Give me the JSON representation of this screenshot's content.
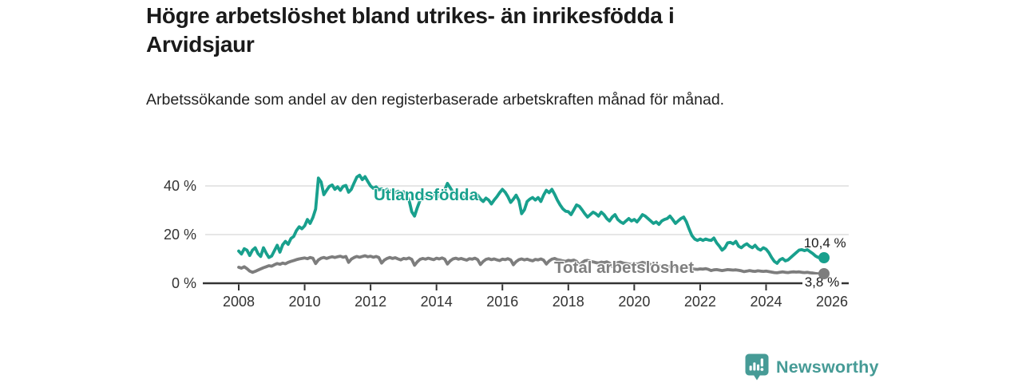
{
  "title": "Högre arbetslöshet bland utrikes- än inrikesfödda i Arvidsjaur",
  "subtitle": "Arbetssökande som andel av den registerbaserade arbetskraften månad för månad.",
  "brand": {
    "name": "Newsworthy"
  },
  "colors": {
    "accent_teal": "#18a08d",
    "line_gray": "#7d7d7d",
    "label_gray": "#7f7f7f",
    "brand_teal": "#469b96",
    "axis": "#333333",
    "grid": "#dddddd",
    "text_dark": "#1a1a1a"
  },
  "chart_data": {
    "type": "line",
    "title": "Högre arbetslöshet bland utrikes- än inrikesfödda i Arvidsjaur",
    "subtitle": "Arbetssökande som andel av den registerbaserade arbetskraften månad för månad.",
    "unit": "%",
    "frequency": "monthly",
    "x_start": "2008-01",
    "x_end": "2025-10",
    "ylim": [
      0,
      46
    ],
    "grid": "horizontal",
    "y_ticks": [
      {
        "value": 0,
        "label": "0 %"
      },
      {
        "value": 20,
        "label": "20 %"
      },
      {
        "value": 40,
        "label": "40 %"
      }
    ],
    "x_ticks": [
      {
        "value": 2008,
        "label": "2008"
      },
      {
        "value": 2010,
        "label": "2010"
      },
      {
        "value": 2012,
        "label": "2012"
      },
      {
        "value": 2014,
        "label": "2014"
      },
      {
        "value": 2016,
        "label": "2016"
      },
      {
        "value": 2018,
        "label": "2018"
      },
      {
        "value": 2020,
        "label": "2020"
      },
      {
        "value": 2022,
        "label": "2022"
      },
      {
        "value": 2024,
        "label": "2024"
      },
      {
        "value": 2026,
        "label": "2026"
      }
    ],
    "series": [
      {
        "name": "Utlandsfödda",
        "color": "#18a08d",
        "end_label": "10,4 %",
        "end_value": 10.4,
        "values": [
          13.2,
          12.0,
          14.2,
          13.6,
          11.4,
          13.6,
          14.6,
          12.2,
          11.0,
          14.6,
          12.4,
          10.6,
          11.2,
          13.4,
          15.6,
          12.8,
          15.8,
          17.2,
          16.0,
          18.4,
          19.2,
          21.6,
          23.2,
          22.4,
          23.6,
          26.2,
          24.6,
          27.0,
          30.5,
          43.2,
          41.6,
          36.4,
          38.2,
          39.8,
          40.4,
          38.6,
          39.6,
          38.2,
          39.8,
          40.2,
          37.4,
          38.6,
          41.2,
          43.6,
          44.4,
          42.6,
          43.8,
          41.8,
          40.0,
          39.0,
          39.6,
          38.4,
          38.8,
          38.0,
          38.6,
          37.6,
          38.2,
          37.2,
          37.8,
          37.0,
          37.6,
          36.4,
          34.2,
          29.4,
          27.6,
          31.0,
          34.0,
          35.6,
          35.0,
          36.2,
          35.4,
          36.0,
          36.6,
          35.6,
          36.8,
          38.4,
          41.0,
          39.2,
          37.4,
          36.4,
          35.6,
          36.2,
          35.2,
          34.6,
          35.4,
          36.4,
          37.2,
          36.2,
          34.6,
          33.6,
          35.0,
          34.2,
          32.6,
          34.2,
          35.6,
          37.2,
          38.6,
          37.4,
          35.6,
          33.2,
          34.6,
          36.2,
          34.0,
          28.6,
          30.2,
          33.6,
          34.6,
          35.2,
          34.2,
          35.2,
          33.6,
          36.2,
          38.2,
          37.2,
          38.6,
          36.6,
          34.2,
          32.2,
          30.6,
          29.6,
          29.4,
          28.2,
          30.2,
          32.2,
          31.6,
          30.2,
          28.6,
          27.2,
          28.2,
          29.2,
          28.6,
          27.6,
          29.2,
          28.2,
          26.6,
          25.6,
          27.2,
          28.2,
          26.2,
          25.2,
          24.6,
          25.6,
          26.6,
          25.6,
          26.2,
          25.2,
          26.6,
          28.2,
          27.6,
          26.6,
          25.6,
          24.6,
          25.2,
          24.2,
          25.6,
          26.2,
          26.6,
          27.6,
          26.2,
          24.6,
          25.6,
          26.6,
          27.2,
          25.2,
          22.2,
          19.6,
          18.2,
          17.6,
          18.2,
          17.6,
          18.2,
          17.8,
          17.6,
          18.6,
          16.6,
          15.2,
          13.6,
          14.6,
          16.6,
          16.8,
          16.2,
          17.2,
          15.2,
          14.6,
          15.6,
          16.2,
          15.2,
          14.6,
          15.6,
          14.2,
          13.6,
          14.6,
          14.0,
          12.6,
          10.6,
          9.0,
          8.2,
          9.6,
          10.2,
          9.2,
          9.6,
          10.6,
          11.6,
          12.6,
          13.6,
          13.8,
          13.4,
          13.8,
          13.0,
          12.2,
          11.2,
          10.6,
          10.9,
          10.4
        ]
      },
      {
        "name": "Total arbetslöshet",
        "color": "#7d7d7d",
        "end_label": "3,8 %",
        "end_value": 3.8,
        "values": [
          6.6,
          6.2,
          6.8,
          6.0,
          5.0,
          4.5,
          4.9,
          5.4,
          5.9,
          6.4,
          6.8,
          7.2,
          7.0,
          7.6,
          8.1,
          7.8,
          8.3,
          8.0,
          8.6,
          9.0,
          9.3,
          9.7,
          10.0,
          10.2,
          10.4,
          10.1,
          10.6,
          10.3,
          8.1,
          9.6,
          10.3,
          10.6,
          10.2,
          10.6,
          10.9,
          10.6,
          10.9,
          11.1,
          10.7,
          11.0,
          8.6,
          9.9,
          10.6,
          11.0,
          10.7,
          11.0,
          11.3,
          10.9,
          11.1,
          10.7,
          11.0,
          10.6,
          8.3,
          9.5,
          10.2,
          10.6,
          10.2,
          10.5,
          10.0,
          9.6,
          10.2,
          10.0,
          10.4,
          9.8,
          7.4,
          8.8,
          9.8,
          10.2,
          9.9,
          10.3,
          10.0,
          9.7,
          10.3,
          10.0,
          10.4,
          9.9,
          7.9,
          9.2,
          10.0,
          10.3,
          9.9,
          10.2,
          9.8,
          9.5,
          10.1,
          9.9,
          10.3,
          9.7,
          7.7,
          9.0,
          9.8,
          10.1,
          9.7,
          10.0,
          9.6,
          9.3,
          9.9,
          9.7,
          10.1,
          9.6,
          7.6,
          8.9,
          9.7,
          10.0,
          9.6,
          9.9,
          9.5,
          9.2,
          9.8,
          9.6,
          10.0,
          9.5,
          7.9,
          9.1,
          9.9,
          10.2,
          9.7,
          9.5,
          9.2,
          9.0,
          9.4,
          9.2,
          9.5,
          9.0,
          7.4,
          8.5,
          9.2,
          9.4,
          9.0,
          8.8,
          8.5,
          8.3,
          8.7,
          8.5,
          8.8,
          8.3,
          6.9,
          7.9,
          8.5,
          8.7,
          8.3,
          8.1,
          7.9,
          7.7,
          8.0,
          7.8,
          8.2,
          8.6,
          8.3,
          8.0,
          7.7,
          7.5,
          7.3,
          7.1,
          6.9,
          6.8,
          7.0,
          6.9,
          7.1,
          6.8,
          6.2,
          6.5,
          6.7,
          6.5,
          6.2,
          6.0,
          5.8,
          5.7,
          5.9,
          5.8,
          6.0,
          5.7,
          5.2,
          5.5,
          5.6,
          5.4,
          5.2,
          5.4,
          5.6,
          5.5,
          5.4,
          5.5,
          5.3,
          5.1,
          4.8,
          5.0,
          5.2,
          5.0,
          4.9,
          5.1,
          5.0,
          4.9,
          5.0,
          4.8,
          4.6,
          4.4,
          4.3,
          4.5,
          4.7,
          4.5,
          4.4,
          4.6,
          4.7,
          4.6,
          4.7,
          4.5,
          4.4,
          4.5,
          4.3,
          4.2,
          4.0,
          3.9,
          4.0,
          3.8
        ]
      }
    ],
    "annotations": [
      {
        "text": "Utlandsfödda",
        "series": 0
      },
      {
        "text": "Total arbetslöshet",
        "series": 1
      },
      {
        "text": "10,4 %",
        "series": 0
      },
      {
        "text": "3,8 %",
        "series": 1
      }
    ]
  }
}
